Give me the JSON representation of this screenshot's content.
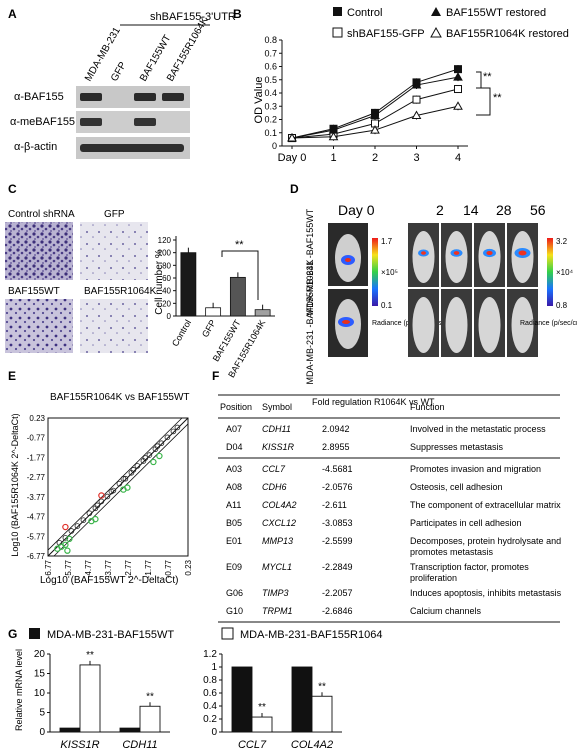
{
  "panels": {
    "A": {
      "letter": "A",
      "construct": "shBAF155-3'UTR",
      "lanes": [
        "MDA-MB-231",
        "GFP",
        "BAF155WT",
        "BAF155R1064K"
      ],
      "blots": [
        "α-BAF155",
        "α-meBAF155",
        "α-β-actin"
      ]
    },
    "B": {
      "letter": "B",
      "legend": [
        "Control",
        "shBAF155-GFP",
        "BAF155WT restored",
        "BAF155R1064K restored"
      ],
      "ylabel": "OD Value",
      "sig": [
        "**",
        "**"
      ]
    },
    "C": {
      "letter": "C",
      "images": [
        "Control shRNA",
        "GFP",
        "BAF155WT",
        "BAF155R1064K"
      ],
      "ylabel": "Cell number %",
      "sig": "**"
    },
    "D": {
      "letter": "D",
      "days": [
        "Day 0",
        "2",
        "14",
        "28",
        "56"
      ],
      "row1": "MDA-MB-231 -BAF155WT",
      "row2": "MDA-MB-231 -BAF155R1064K",
      "scale1": {
        "max": "1.7",
        "min": "0.1",
        "unit": "×10⁵"
      },
      "scale2": {
        "max": "3.2",
        "min": "0.8",
        "unit": "×10⁴"
      },
      "radiance": "Radiance (p/sec/cm²/sr)"
    },
    "E": {
      "letter": "E",
      "title": "BAF155R1064K vs BAF155WT",
      "xlabel": "Log10 (BAF155WT 2^-DeltaCt)",
      "ylabel": "Log10 (BAF155R1064K 2^-DeltaCt)"
    },
    "F": {
      "letter": "F",
      "headers": [
        "Position",
        "Symbol",
        "Fold regulation R1064K vs WT",
        "Function"
      ],
      "rows_up": [
        [
          "A07",
          "CDH11",
          "2.0942",
          "Involved in the metastatic process"
        ],
        [
          "D04",
          "KISS1R",
          "2.8955",
          "Suppresses metastasis"
        ]
      ],
      "rows_down": [
        [
          "A03",
          "CCL7",
          "-4.5681",
          "Promotes invasion and migration"
        ],
        [
          "A08",
          "CDH6",
          "-2.0576",
          "Osteosis, cell adhesion"
        ],
        [
          "A11",
          "COL4A2",
          "-2.611",
          "The component of extracellular matrix"
        ],
        [
          "B05",
          "CXCL12",
          "-3.0853",
          "Participates in cell adhesion"
        ],
        [
          "E01",
          "MMP13",
          "-2.5599",
          "Decomposes, protein hydrolysate and promotes metastasis"
        ],
        [
          "E09",
          "MYCL1",
          "-2.2849",
          "Transcription factor, promotes proliferation"
        ],
        [
          "G06",
          "TIMP3",
          "-2.2057",
          "Induces apoptosis, inhibits metastasis"
        ],
        [
          "G10",
          "TRPM1",
          "-2.6846",
          "Calcium channels"
        ]
      ]
    },
    "G": {
      "letter": "G",
      "legend": [
        "MDA-MB-231-BAF155WT",
        "MDA-MB-231-BAF155R1064"
      ],
      "ylabel": "Relative mRNA level"
    }
  },
  "chart_data": [
    {
      "type": "line",
      "panel": "B",
      "x": [
        0,
        1,
        2,
        3,
        4
      ],
      "xticklabels": [
        "Day 0",
        "1",
        "2",
        "3",
        "4"
      ],
      "ylabel": "OD Value",
      "ylim": [
        0,
        0.8
      ],
      "yticks": [
        "0",
        "0.1",
        "0.2",
        "0.3",
        "0.4",
        "0.5",
        "0.6",
        "0.7",
        "0.8"
      ],
      "series": [
        {
          "name": "Control",
          "values": [
            0.06,
            0.13,
            0.25,
            0.48,
            0.58
          ],
          "marker": "filled-square"
        },
        {
          "name": "shBAF155-GFP",
          "values": [
            0.06,
            0.09,
            0.17,
            0.35,
            0.43
          ],
          "marker": "open-square"
        },
        {
          "name": "BAF155WT restored",
          "values": [
            0.06,
            0.12,
            0.23,
            0.46,
            0.52
          ],
          "marker": "filled-triangle"
        },
        {
          "name": "BAF155R1064K restored",
          "values": [
            0.06,
            0.07,
            0.12,
            0.23,
            0.3
          ],
          "marker": "open-triangle"
        }
      ]
    },
    {
      "type": "bar",
      "panel": "C",
      "categories": [
        "Control",
        "GFP",
        "BAF155WT",
        "BAF155R1064K"
      ],
      "values": [
        100,
        13,
        61,
        10
      ],
      "colors": [
        "#1a1a1a",
        "#ffffff",
        "#555555",
        "#a0a0a0"
      ],
      "ylabel": "Cell number %",
      "ylim": [
        0,
        120
      ],
      "yticks": [
        "0",
        "20",
        "40",
        "60",
        "80",
        "100",
        "120"
      ]
    },
    {
      "type": "scatter",
      "panel": "E",
      "xticklabels": [
        "-6.77",
        "-5.77",
        "-4.77",
        "-3.77",
        "-2.77",
        "-1.77",
        "-0.77",
        "0.23"
      ],
      "yticklabels": [
        "0.23",
        "-0.77",
        "-1.77",
        "-2.77",
        "-3.77",
        "-4.77",
        "-5.77",
        "-6.77"
      ],
      "xlim": [
        -6.77,
        0.23
      ],
      "ylim": [
        -6.77,
        0.23
      ],
      "points_x": [
        -6.2,
        -5.9,
        -5.6,
        -5.3,
        -5.0,
        -4.7,
        -4.4,
        -4.1,
        -3.8,
        -3.5,
        -3.2,
        -2.9,
        -2.6,
        -2.3,
        -2.0,
        -1.7,
        -1.4,
        -1.1,
        -0.8,
        -0.5,
        -0.3,
        -3.0,
        -2.5,
        -1.9,
        -1.3,
        -4.3,
        -3.6
      ],
      "points_y": [
        -6.1,
        -5.85,
        -5.5,
        -5.25,
        -4.95,
        -4.6,
        -4.35,
        -4.0,
        -3.75,
        -3.45,
        -3.1,
        -2.85,
        -2.55,
        -2.2,
        -1.95,
        -1.65,
        -1.35,
        -1.05,
        -0.75,
        -0.45,
        -0.25,
        -2.85,
        -2.4,
        -1.8,
        -1.2,
        -4.2,
        -3.5
      ],
      "green_x": [
        -6.3,
        -6.1,
        -5.9,
        -5.7,
        -5.8,
        -4.6,
        -4.4,
        -3.0,
        -2.8,
        -1.5,
        -1.2
      ],
      "green_y": [
        -6.4,
        -6.3,
        -6.2,
        -5.9,
        -6.5,
        -5.0,
        -4.9,
        -3.4,
        -3.3,
        -2.0,
        -1.7
      ]
    },
    {
      "type": "bar",
      "panel": "G-left",
      "categories": [
        "KISS1R",
        "CDH11"
      ],
      "series": [
        {
          "name": "MDA-MB-231-BAF155WT",
          "values": [
            1,
            1
          ]
        },
        {
          "name": "MDA-MB-231-BAF155R1064",
          "values": [
            17.2,
            6.6
          ]
        }
      ],
      "ylim": [
        0,
        20
      ],
      "yticks": [
        "0",
        "5",
        "10",
        "15",
        "20"
      ],
      "sig": [
        "**",
        "**"
      ]
    },
    {
      "type": "bar",
      "panel": "G-right",
      "categories": [
        "CCL7",
        "COL4A2"
      ],
      "series": [
        {
          "name": "MDA-MB-231-BAF155WT",
          "values": [
            1,
            1
          ]
        },
        {
          "name": "MDA-MB-231-BAF155R1064",
          "values": [
            0.23,
            0.55
          ]
        }
      ],
      "ylim": [
        0,
        1.2
      ],
      "yticks": [
        "0",
        "0.2",
        "0.4",
        "0.6",
        "0.8",
        "1",
        "1.2"
      ],
      "sig": [
        "**",
        "**"
      ]
    }
  ]
}
